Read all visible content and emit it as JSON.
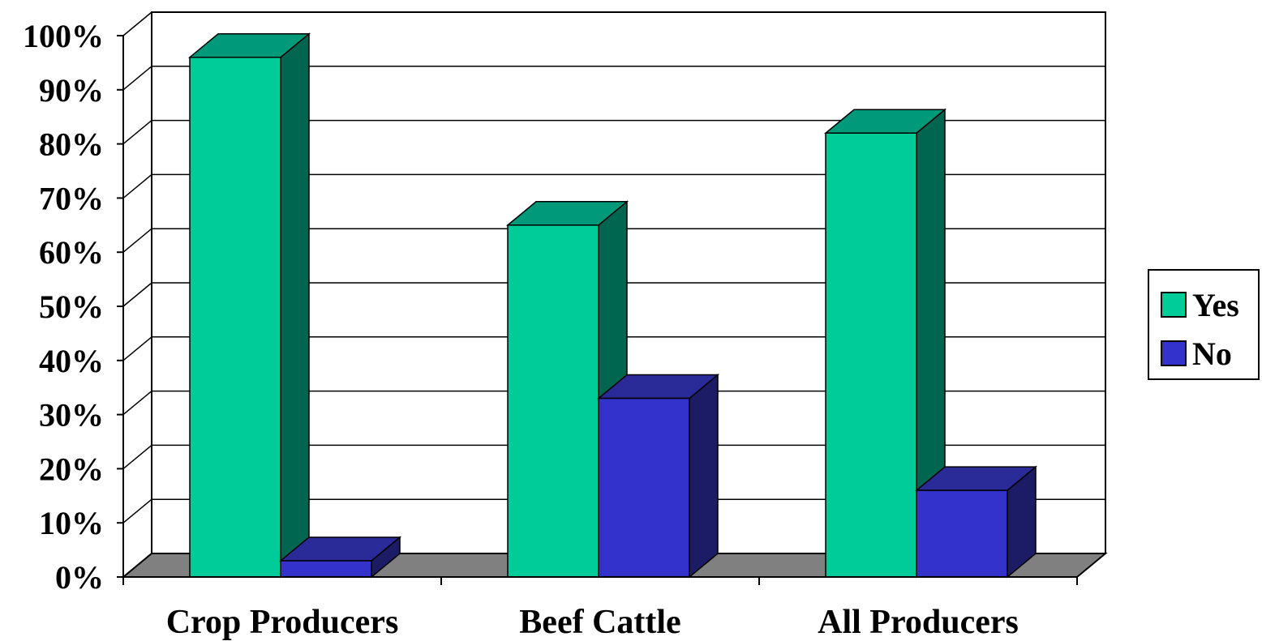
{
  "chart_data": {
    "type": "bar",
    "title": "",
    "xlabel": "",
    "ylabel": "",
    "categories": [
      "Crop Producers",
      "Beef Cattle",
      "All Producers"
    ],
    "series": [
      {
        "name": "Yes",
        "values": [
          96,
          65,
          82
        ]
      },
      {
        "name": "No",
        "values": [
          3,
          33,
          16
        ]
      }
    ],
    "ylim": [
      0,
      100
    ],
    "yticks": [
      0,
      10,
      20,
      30,
      40,
      50,
      60,
      70,
      80,
      90,
      100
    ],
    "ytick_suffix": "%",
    "grid": true,
    "three_d": true,
    "legend_position": "right",
    "colors": {
      "Yes": {
        "front": "#00cc99",
        "top": "#00997a",
        "side": "#006650"
      },
      "No": {
        "front": "#3333cc",
        "top": "#2a2a99",
        "side": "#1c1c66"
      },
      "floor": "#808080",
      "wall": "#ffffff",
      "grid": "#000000"
    }
  }
}
